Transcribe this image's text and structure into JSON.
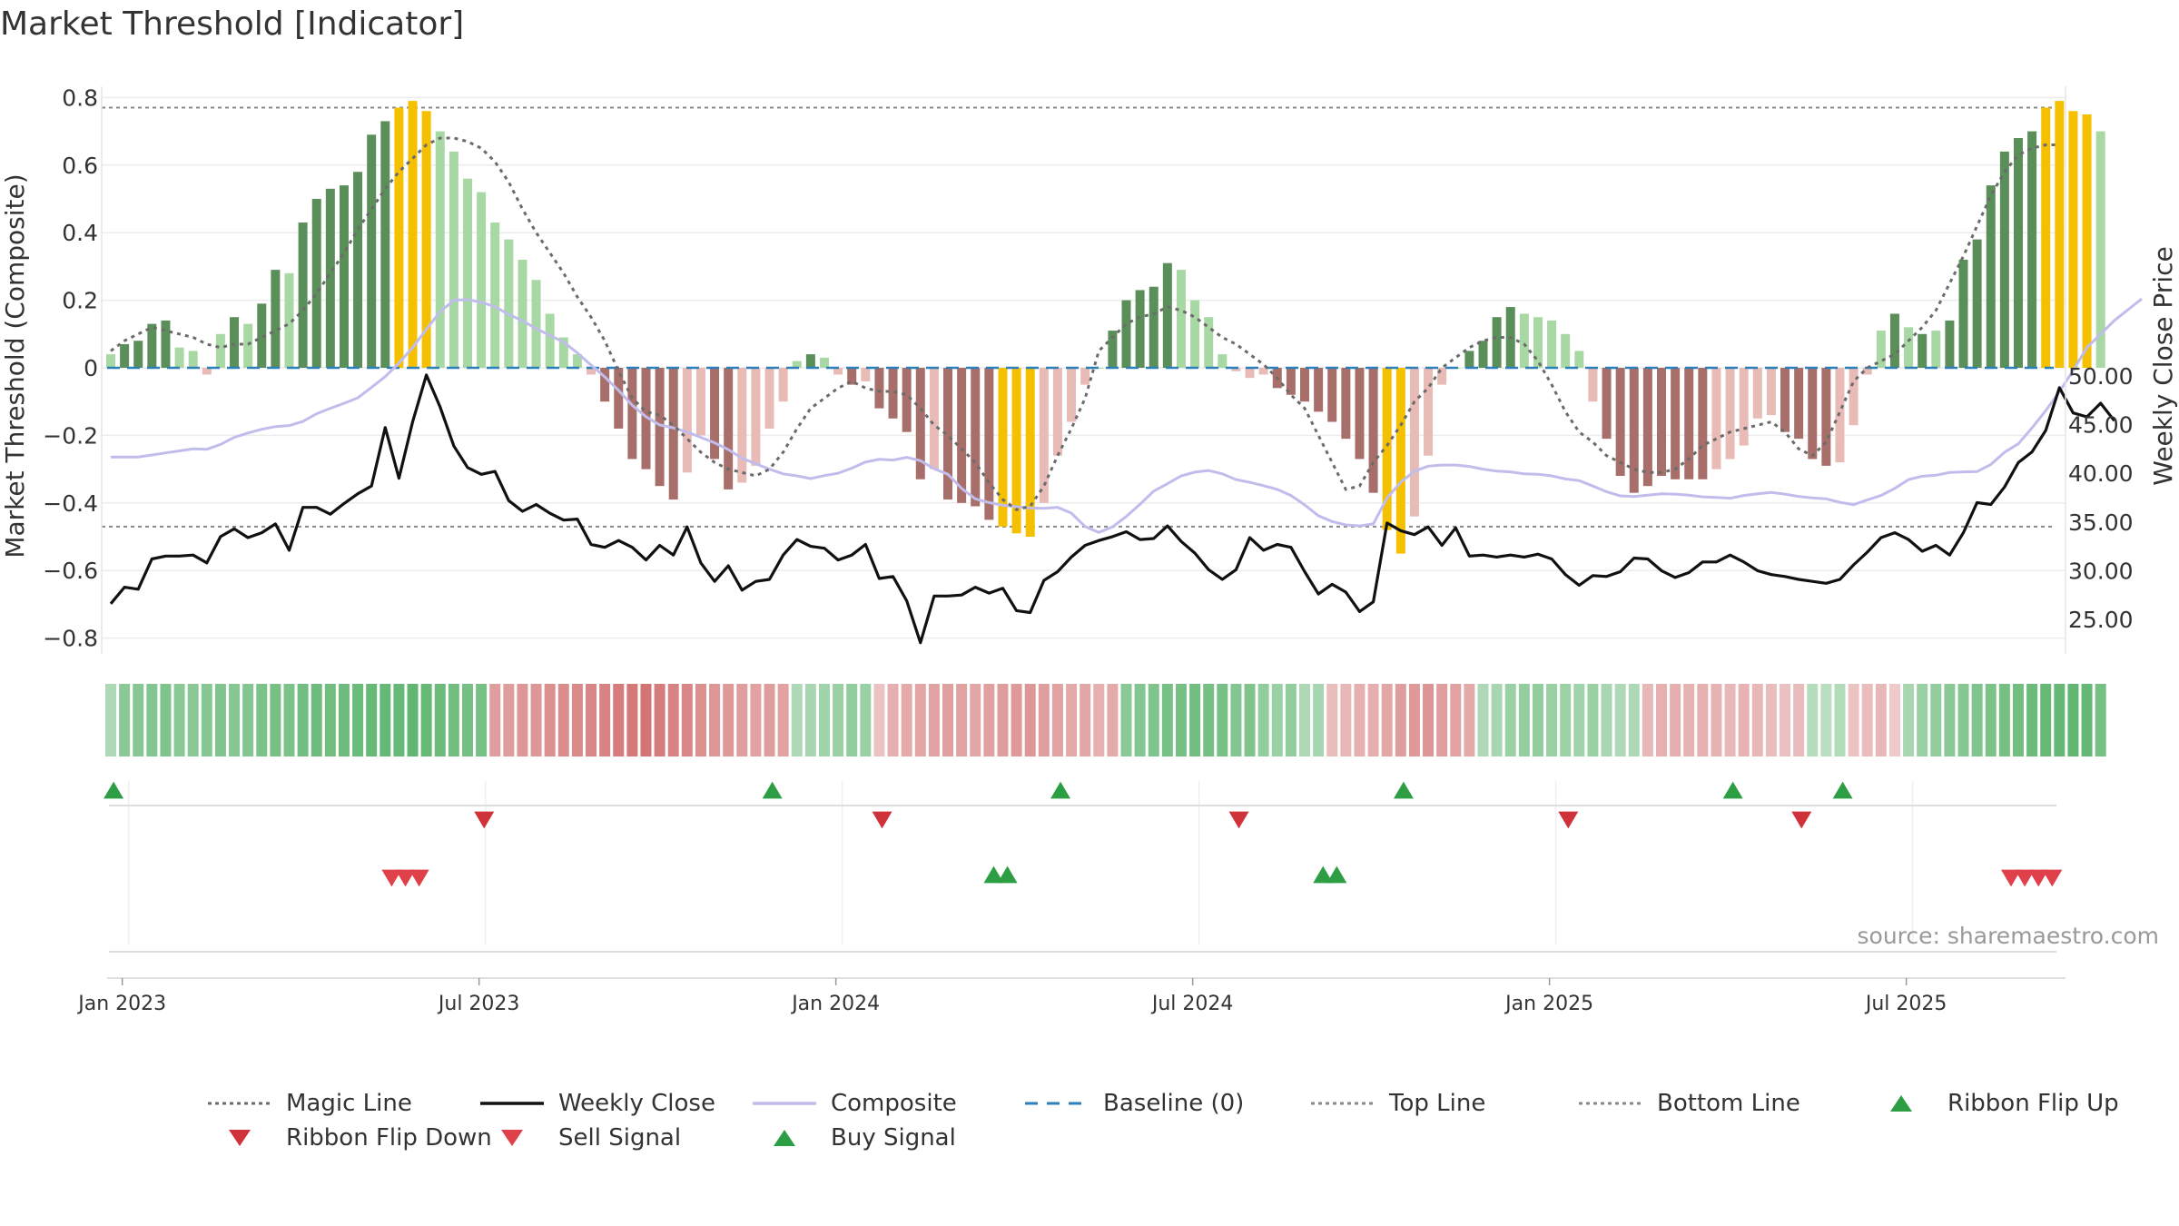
{
  "title": "Market Threshold [Indicator]",
  "source_note": "source: sharemaestro.com",
  "colors": {
    "dark_green": "#5a8f5a",
    "light_green": "#a8d8a4",
    "dark_red": "#a86f6a",
    "light_red": "#e8bbb6",
    "gold": "#f5c000",
    "magic": "#6b6b6b",
    "close": "#111111",
    "composite": "#c0bcec",
    "baseline": "#2d7fb8",
    "band_line": "#888888",
    "signal_up": "#2e9e44",
    "signal_down": "#d0323a"
  },
  "legend": [
    {
      "key": "magic",
      "label": "Magic Line",
      "symbol": "dotted-line-icon",
      "color": "#6b6b6b"
    },
    {
      "key": "close",
      "label": "Weekly Close",
      "symbol": "solid-line-icon",
      "color": "#111111"
    },
    {
      "key": "composite",
      "label": "Composite",
      "symbol": "solid-line-icon",
      "color": "#c0bcec"
    },
    {
      "key": "baseline",
      "label": "Baseline (0)",
      "symbol": "dashed-line-icon",
      "color": "#2d7fb8"
    },
    {
      "key": "top",
      "label": "Top Line",
      "symbol": "dotted-line-icon",
      "color": "#888888"
    },
    {
      "key": "bottom",
      "label": "Bottom Line",
      "symbol": "dotted-line-icon",
      "color": "#888888"
    },
    {
      "key": "flip_up",
      "label": "Ribbon Flip Up",
      "symbol": "triangle-up-icon",
      "color": "#2e9e44"
    },
    {
      "key": "flip_down",
      "label": "Ribbon Flip Down",
      "symbol": "triangle-down-icon",
      "color": "#d0323a"
    },
    {
      "key": "sell",
      "label": "Sell Signal",
      "symbol": "triangle-down-icon",
      "color": "#e0404a"
    },
    {
      "key": "buy",
      "label": "Buy Signal",
      "symbol": "triangle-up-icon",
      "color": "#2e9e44"
    }
  ],
  "chart_data": {
    "type": "bar",
    "title": "Market Threshold [Indicator]",
    "ylabel_left": "Market Threshold (Composite)",
    "ylabel_right": "Weekly Close Price",
    "ylim_left": [
      -0.86,
      0.8
    ],
    "ylim_right": [
      21.4,
      50.7
    ],
    "yticks_left": [
      "0.8",
      "0.6",
      "0.4",
      "0.2",
      "0",
      "−0.2",
      "−0.4",
      "−0.6",
      "−0.8"
    ],
    "yticks_left_values": [
      0.8,
      0.6,
      0.4,
      0.2,
      0,
      -0.2,
      -0.4,
      -0.6,
      -0.8
    ],
    "yticks_right": [
      "50.00",
      "45.00",
      "40.00",
      "35.00",
      "30.00",
      "25.00"
    ],
    "yticks_right_values": [
      50,
      45,
      40,
      35,
      30,
      25
    ],
    "xticks": [
      "Jan 2023",
      "Jul 2023",
      "Jan 2024",
      "Jul 2024",
      "Jan 2025",
      "Jul 2025"
    ],
    "xticks_week_index": [
      1.5,
      27.5,
      53.5,
      79.5,
      105.5,
      131.5
    ],
    "top_line": 0.77,
    "bottom_line": -0.47,
    "baseline": 0,
    "composite_histogram": [
      0.04,
      0.07,
      0.08,
      0.13,
      0.14,
      0.06,
      0.05,
      -0.02,
      0.1,
      0.15,
      0.13,
      0.19,
      0.29,
      0.28,
      0.43,
      0.5,
      0.53,
      0.54,
      0.58,
      0.69,
      0.73,
      0.77,
      0.79,
      0.76,
      0.7,
      0.64,
      0.56,
      0.52,
      0.43,
      0.38,
      0.32,
      0.26,
      0.16,
      0.09,
      0.04,
      -0.02,
      -0.1,
      -0.18,
      -0.27,
      -0.3,
      -0.35,
      -0.39,
      -0.31,
      -0.2,
      -0.27,
      -0.36,
      -0.34,
      -0.29,
      -0.18,
      -0.1,
      0.02,
      0.04,
      0.03,
      -0.02,
      -0.05,
      -0.04,
      -0.12,
      -0.15,
      -0.19,
      -0.33,
      -0.3,
      -0.39,
      -0.4,
      -0.41,
      -0.45,
      -0.47,
      -0.49,
      -0.5,
      -0.4,
      -0.26,
      -0.16,
      -0.05,
      0,
      0.11,
      0.2,
      0.23,
      0.24,
      0.31,
      0.29,
      0.2,
      0.15,
      0.04,
      -0.01,
      -0.03,
      -0.02,
      -0.06,
      -0.08,
      -0.1,
      -0.13,
      -0.16,
      -0.21,
      -0.27,
      -0.37,
      -0.48,
      -0.55,
      -0.44,
      -0.26,
      -0.05,
      0,
      0.05,
      0.08,
      0.15,
      0.18,
      0.16,
      0.15,
      0.14,
      0.1,
      0.05,
      -0.1,
      -0.21,
      -0.32,
      -0.37,
      -0.35,
      -0.32,
      -0.33,
      -0.33,
      -0.33,
      -0.3,
      -0.27,
      -0.23,
      -0.15,
      -0.14,
      -0.19,
      -0.21,
      -0.27,
      -0.29,
      -0.28,
      -0.17,
      -0.02,
      0.11,
      0.16,
      0.12,
      0.1,
      0.11,
      0.14,
      0.32,
      0.38,
      0.54,
      0.64,
      0.68,
      0.7,
      0.77,
      0.79,
      0.76,
      0.75,
      0.7
    ],
    "bar_category": [
      "lg",
      "dg",
      "dg",
      "dg",
      "dg",
      "lg",
      "lg",
      "lr",
      "lg",
      "dg",
      "lg",
      "dg",
      "dg",
      "lg",
      "dg",
      "dg",
      "dg",
      "dg",
      "dg",
      "dg",
      "dg",
      "gold",
      "gold",
      "gold",
      "lg",
      "lg",
      "lg",
      "lg",
      "lg",
      "lg",
      "lg",
      "lg",
      "lg",
      "lg",
      "lg",
      "lr",
      "dr",
      "dr",
      "dr",
      "dr",
      "dr",
      "dr",
      "lr",
      "lr",
      "dr",
      "dr",
      "lr",
      "lr",
      "lr",
      "lr",
      "lg",
      "dg",
      "lg",
      "lr",
      "dr",
      "lr",
      "dr",
      "dr",
      "dr",
      "dr",
      "lr",
      "dr",
      "dr",
      "dr",
      "dr",
      "gold",
      "gold",
      "gold",
      "lr",
      "lr",
      "lr",
      "lr",
      "lg",
      "dg",
      "dg",
      "dg",
      "dg",
      "dg",
      "lg",
      "lg",
      "lg",
      "lg",
      "lr",
      "lr",
      "lr",
      "dr",
      "dr",
      "dr",
      "dr",
      "dr",
      "dr",
      "dr",
      "dr",
      "gold",
      "gold",
      "lr",
      "lr",
      "lr",
      "lg",
      "dg",
      "dg",
      "dg",
      "dg",
      "lg",
      "lg",
      "lg",
      "lg",
      "lg",
      "lr",
      "dr",
      "dr",
      "dr",
      "dr",
      "dr",
      "dr",
      "dr",
      "dr",
      "lr",
      "lr",
      "lr",
      "lr",
      "lr",
      "dr",
      "dr",
      "dr",
      "dr",
      "lr",
      "lr",
      "lr",
      "lg",
      "dg",
      "lg",
      "dg",
      "lg",
      "dg",
      "dg",
      "dg",
      "dg",
      "dg",
      "dg",
      "dg",
      "gold",
      "gold",
      "gold",
      "gold",
      "lg"
    ],
    "weekly_close": [
      26.6,
      28.3,
      28.1,
      31.2,
      31.5,
      31.5,
      31.6,
      30.8,
      33.5,
      34.3,
      33.4,
      33.9,
      34.8,
      32.1,
      36.5,
      36.5,
      35.8,
      36.9,
      37.9,
      38.7,
      44.7,
      39.5,
      45.3,
      50.1,
      46.8,
      42.8,
      40.6,
      39.9,
      40.2,
      37.2,
      36.1,
      36.8,
      35.9,
      35.2,
      35.3,
      32.7,
      32.4,
      33.1,
      32.4,
      31.1,
      32.6,
      31.6,
      34.5,
      30.8,
      28.9,
      30.5,
      28.0,
      28.9,
      29.1,
      31.6,
      33.2,
      32.5,
      32.3,
      31.1,
      31.6,
      32.7,
      29.2,
      29.4,
      26.9,
      22.6,
      27.4,
      27.4,
      27.5,
      28.3,
      27.7,
      28.2,
      25.9,
      25.7,
      29.0,
      29.9,
      31.4,
      32.6,
      33.1,
      33.5,
      34.0,
      33.2,
      33.3,
      34.6,
      33.0,
      31.8,
      30.1,
      29.1,
      30.1,
      33.4,
      32.1,
      32.7,
      32.4,
      29.9,
      27.6,
      28.6,
      27.8,
      25.8,
      26.8,
      34.9,
      34.1,
      33.7,
      34.5,
      32.6,
      34.4,
      31.5,
      31.6,
      31.4,
      31.6,
      31.4,
      31.7,
      31.2,
      29.6,
      28.5,
      29.5,
      29.4,
      29.9,
      31.3,
      31.2,
      30.0,
      29.3,
      29.8,
      30.9,
      30.9,
      31.6,
      30.9,
      30.0,
      29.6,
      29.4,
      29.1,
      28.9,
      28.7,
      29.1,
      30.6,
      31.9,
      33.4,
      33.9,
      33.2,
      32.0,
      32.6,
      31.6,
      33.9,
      37.0,
      36.8,
      38.6,
      41.1,
      42.2,
      44.4,
      48.8,
      46.2,
      45.8,
      47.2,
      45.4
    ],
    "composite_line": [
      -0.264,
      -0.264,
      -0.264,
      -0.258,
      -0.252,
      -0.246,
      -0.24,
      -0.241,
      -0.227,
      -0.206,
      -0.193,
      -0.182,
      -0.174,
      -0.171,
      -0.159,
      -0.136,
      -0.12,
      -0.105,
      -0.089,
      -0.058,
      -0.026,
      0.014,
      0.06,
      0.114,
      0.166,
      0.2,
      0.202,
      0.194,
      0.181,
      0.158,
      0.139,
      0.116,
      0.096,
      0.076,
      0.044,
      0.008,
      -0.027,
      -0.067,
      -0.111,
      -0.145,
      -0.169,
      -0.178,
      -0.19,
      -0.206,
      -0.222,
      -0.242,
      -0.268,
      -0.284,
      -0.3,
      -0.314,
      -0.32,
      -0.328,
      -0.319,
      -0.312,
      -0.297,
      -0.279,
      -0.271,
      -0.273,
      -0.265,
      -0.275,
      -0.299,
      -0.315,
      -0.357,
      -0.388,
      -0.399,
      -0.407,
      -0.411,
      -0.415,
      -0.416,
      -0.413,
      -0.43,
      -0.47,
      -0.487,
      -0.471,
      -0.44,
      -0.404,
      -0.365,
      -0.343,
      -0.32,
      -0.309,
      -0.304,
      -0.314,
      -0.331,
      -0.339,
      -0.349,
      -0.36,
      -0.378,
      -0.406,
      -0.438,
      -0.455,
      -0.465,
      -0.468,
      -0.462,
      -0.385,
      -0.339,
      -0.306,
      -0.291,
      -0.288,
      -0.288,
      -0.292,
      -0.3,
      -0.306,
      -0.308,
      -0.314,
      -0.315,
      -0.32,
      -0.329,
      -0.334,
      -0.35,
      -0.367,
      -0.379,
      -0.381,
      -0.377,
      -0.373,
      -0.374,
      -0.377,
      -0.382,
      -0.384,
      -0.386,
      -0.378,
      -0.373,
      -0.369,
      -0.374,
      -0.381,
      -0.385,
      -0.388,
      -0.398,
      -0.405,
      -0.391,
      -0.378,
      -0.357,
      -0.331,
      -0.321,
      -0.318,
      -0.31,
      -0.308,
      -0.307,
      -0.286,
      -0.25,
      -0.225,
      -0.178,
      -0.127,
      -0.071,
      -0.008,
      0.06,
      0.1,
      0.14,
      0.172,
      0.204
    ],
    "magic_line": [
      0.05,
      0.08,
      0.1,
      0.12,
      0.11,
      0.1,
      0.09,
      0.07,
      0.06,
      0.07,
      0.07,
      0.09,
      0.11,
      0.13,
      0.17,
      0.22,
      0.28,
      0.34,
      0.41,
      0.47,
      0.53,
      0.58,
      0.62,
      0.66,
      0.68,
      0.68,
      0.67,
      0.65,
      0.61,
      0.55,
      0.47,
      0.4,
      0.34,
      0.28,
      0.21,
      0.15,
      0.08,
      -0.01,
      -0.09,
      -0.13,
      -0.14,
      -0.17,
      -0.21,
      -0.25,
      -0.28,
      -0.3,
      -0.31,
      -0.32,
      -0.3,
      -0.25,
      -0.18,
      -0.12,
      -0.09,
      -0.06,
      -0.04,
      -0.06,
      -0.07,
      -0.07,
      -0.08,
      -0.12,
      -0.17,
      -0.2,
      -0.24,
      -0.28,
      -0.34,
      -0.39,
      -0.42,
      -0.41,
      -0.35,
      -0.26,
      -0.18,
      -0.09,
      0.05,
      0.09,
      0.13,
      0.15,
      0.16,
      0.18,
      0.17,
      0.15,
      0.12,
      0.09,
      0.07,
      0.04,
      0.01,
      -0.03,
      -0.08,
      -0.12,
      -0.2,
      -0.28,
      -0.36,
      -0.35,
      -0.28,
      -0.23,
      -0.17,
      -0.1,
      -0.06,
      0.0,
      0.03,
      0.06,
      0.08,
      0.09,
      0.09,
      0.07,
      0.02,
      -0.05,
      -0.13,
      -0.19,
      -0.22,
      -0.26,
      -0.28,
      -0.3,
      -0.31,
      -0.31,
      -0.3,
      -0.27,
      -0.23,
      -0.21,
      -0.19,
      -0.18,
      -0.17,
      -0.16,
      -0.19,
      -0.24,
      -0.26,
      -0.22,
      -0.13,
      -0.04,
      0.0,
      0.02,
      0.04,
      0.08,
      0.12,
      0.17,
      0.25,
      0.33,
      0.42,
      0.51,
      0.58,
      0.63,
      0.65,
      0.66,
      0.66
    ],
    "ribbon_strength": [
      0.3,
      0.55,
      0.58,
      0.6,
      0.62,
      0.55,
      0.55,
      0.58,
      0.62,
      0.58,
      0.6,
      0.65,
      0.7,
      0.65,
      0.72,
      0.75,
      0.72,
      0.75,
      0.78,
      0.8,
      0.82,
      0.82,
      0.85,
      0.8,
      0.78,
      0.72,
      0.7,
      0.68,
      -0.55,
      -0.55,
      -0.6,
      -0.6,
      -0.65,
      -0.68,
      -0.7,
      -0.72,
      -0.75,
      -0.8,
      -0.82,
      -0.85,
      -0.8,
      -0.75,
      -0.72,
      -0.65,
      -0.6,
      -0.58,
      -0.55,
      -0.5,
      -0.55,
      -0.5,
      0.3,
      0.35,
      0.4,
      0.45,
      0.5,
      0.45,
      -0.25,
      -0.4,
      -0.45,
      -0.48,
      -0.5,
      -0.52,
      -0.5,
      -0.48,
      -0.52,
      -0.55,
      -0.58,
      -0.6,
      -0.55,
      -0.5,
      -0.45,
      -0.48,
      -0.4,
      -0.45,
      0.55,
      0.6,
      0.62,
      0.68,
      0.7,
      0.72,
      0.7,
      0.68,
      0.6,
      0.62,
      0.5,
      0.45,
      0.5,
      0.3,
      0.35,
      -0.3,
      -0.35,
      -0.4,
      -0.42,
      -0.48,
      -0.55,
      -0.58,
      -0.62,
      -0.55,
      -0.5,
      -0.45,
      0.3,
      0.35,
      0.45,
      0.48,
      0.5,
      0.45,
      0.42,
      0.4,
      0.45,
      0.35,
      0.3,
      0.3,
      -0.35,
      -0.4,
      -0.42,
      -0.38,
      -0.4,
      -0.38,
      -0.35,
      -0.38,
      -0.35,
      -0.3,
      -0.28,
      -0.32,
      0.25,
      0.22,
      0.28,
      -0.25,
      -0.3,
      -0.35,
      -0.2,
      0.35,
      0.45,
      0.5,
      0.55,
      0.58,
      0.62,
      0.65,
      0.7,
      0.72,
      0.78,
      0.8,
      0.82,
      0.85,
      0.82,
      0.7
    ],
    "ribbon_flip_up_weeks": [
      1,
      49,
      70,
      95,
      119,
      127
    ],
    "ribbon_flip_down_weeks": [
      28,
      57,
      83,
      107,
      124
    ],
    "sell_signal_weeks": [
      21,
      22,
      23,
      139,
      140,
      141,
      142
    ],
    "buy_signal_weeks": [
      65,
      66,
      89,
      90
    ]
  }
}
